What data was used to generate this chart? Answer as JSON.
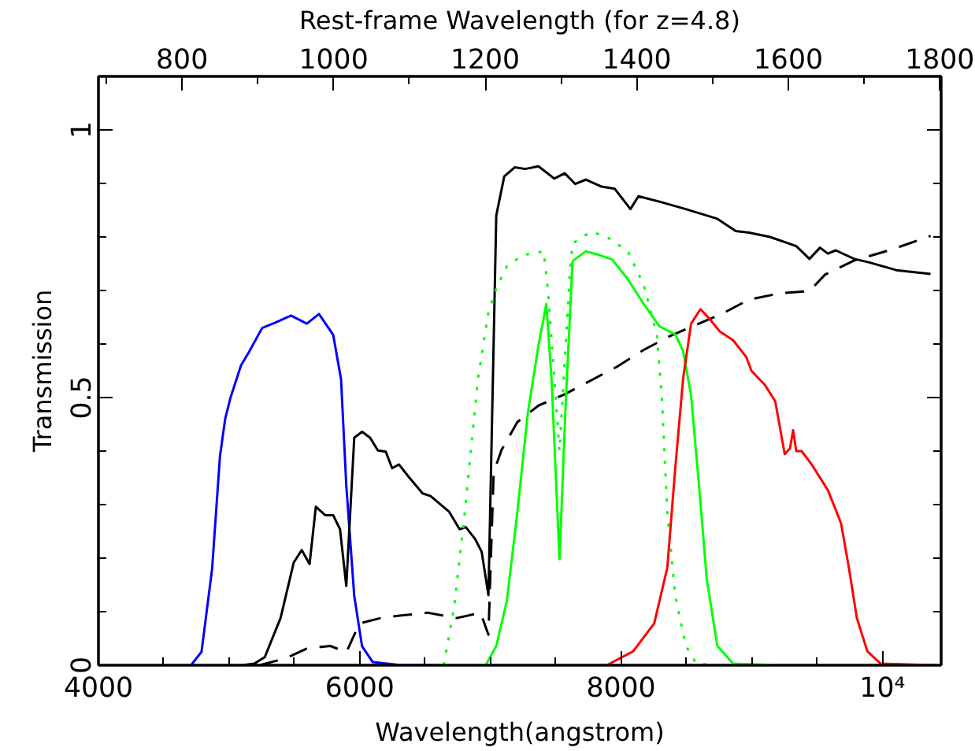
{
  "chart_data": {
    "type": "line",
    "xlabel": "Wavelength(angstrom)",
    "ylabel": "Transmission",
    "x2label": "Rest-frame Wavelength (for z=4.8)",
    "xlim": [
      4000,
      10450
    ],
    "ylim": [
      0,
      1.1
    ],
    "x2lim": [
      689.66,
      1801.72
    ],
    "xticks": [
      4000,
      {
        "value": 4500,
        "label": null
      },
      6000,
      {
        "value": 5000,
        "label": null
      },
      {
        "value": 5500,
        "label": null
      },
      {
        "value": 6500,
        "label": null
      },
      {
        "value": 7000,
        "label": null
      },
      {
        "value": 7500,
        "label": null
      },
      8000,
      {
        "value": 8500,
        "label": null
      },
      {
        "value": 9000,
        "label": null
      },
      {
        "value": 9500,
        "label": null
      },
      {
        "value": 10000,
        "label": "10⁴"
      }
    ],
    "x2ticks": [
      {
        "value": 700,
        "label": null
      },
      800,
      {
        "value": 900,
        "label": null
      },
      1000,
      {
        "value": 1100,
        "label": null
      },
      1200,
      {
        "value": 1300,
        "label": null
      },
      1400,
      {
        "value": 1500,
        "label": null
      },
      1600,
      {
        "value": 1700,
        "label": null
      },
      1800
    ],
    "yticks": [
      0,
      {
        "value": 0.1,
        "label": null
      },
      {
        "value": 0.2,
        "label": null
      },
      {
        "value": 0.3,
        "label": null
      },
      {
        "value": 0.4,
        "label": null
      },
      0.5,
      {
        "value": 0.6,
        "label": null
      },
      {
        "value": 0.7,
        "label": null
      },
      {
        "value": 0.8,
        "label": null
      },
      {
        "value": 0.9,
        "label": null
      },
      1,
      {
        "value": 1.1,
        "label": null
      }
    ],
    "grid": false,
    "series": [
      {
        "color": "#0000ff",
        "line_style": "solid",
        "x": [
          4709,
          4789,
          4870,
          4930,
          4970,
          5011,
          5091,
          5152,
          5253,
          5353,
          5474,
          5595,
          5688,
          5797,
          5857,
          5897,
          5958,
          6018,
          6099,
          6320,
          6562
        ],
        "values": [
          0,
          0.025,
          0.18,
          0.39,
          0.46,
          0.5,
          0.56,
          0.585,
          0.63,
          0.64,
          0.653,
          0.638,
          0.656,
          0.617,
          0.534,
          0.336,
          0.129,
          0.035,
          0.006,
          0,
          0
        ]
      },
      {
        "color": "#000000",
        "line_style": "solid",
        "x": [
          5100,
          5193,
          5273,
          5394,
          5495,
          5556,
          5616,
          5664,
          5737,
          5797,
          5849,
          5897,
          5958,
          6018,
          6079,
          6139,
          6199,
          6248,
          6300,
          6381,
          6481,
          6542,
          6683,
          6764,
          6812,
          6885,
          6933,
          6985,
          7045,
          7106,
          7186,
          7267,
          7368,
          7489,
          7569,
          7650,
          7730,
          7851,
          7952,
          8072,
          8133,
          8294,
          8495,
          8737,
          8878,
          8979,
          9140,
          9341,
          9442,
          9523,
          9583,
          9643,
          9785,
          9906,
          10107,
          10369
        ],
        "values": [
          0,
          0.003,
          0.015,
          0.088,
          0.192,
          0.215,
          0.189,
          0.296,
          0.28,
          0.28,
          0.254,
          0.148,
          0.425,
          0.436,
          0.425,
          0.401,
          0.399,
          0.368,
          0.375,
          0.35,
          0.321,
          0.316,
          0.287,
          0.254,
          0.258,
          0.235,
          0.212,
          0.131,
          0.84,
          0.913,
          0.93,
          0.927,
          0.932,
          0.909,
          0.919,
          0.899,
          0.907,
          0.894,
          0.89,
          0.852,
          0.876,
          0.866,
          0.852,
          0.834,
          0.811,
          0.808,
          0.8,
          0.783,
          0.759,
          0.78,
          0.769,
          0.775,
          0.759,
          0.752,
          0.738,
          0.731
        ]
      },
      {
        "color": "#000000",
        "line_style": "dashed",
        "x": [
          5233,
          5434,
          5595,
          5776,
          5897,
          5998,
          6160,
          6320,
          6522,
          6743,
          6925,
          6985,
          7025,
          7085,
          7206,
          7368,
          7569,
          7770,
          7972,
          8173,
          8375,
          8576,
          8777,
          8979,
          9221,
          9442,
          9563,
          9785,
          10066,
          10369
        ],
        "values": [
          0,
          0.013,
          0.031,
          0.036,
          0.024,
          0.078,
          0.088,
          0.093,
          0.098,
          0.088,
          0.098,
          0.057,
          0.36,
          0.402,
          0.454,
          0.485,
          0.506,
          0.532,
          0.558,
          0.589,
          0.615,
          0.636,
          0.657,
          0.683,
          0.695,
          0.699,
          0.73,
          0.756,
          0.776,
          0.802
        ]
      },
      {
        "color": "#00ff00",
        "line_style": "dotted",
        "x": [
          6643,
          6723,
          6804,
          6904,
          6985,
          7045,
          7126,
          7247,
          7408,
          7441,
          7529,
          7610,
          7629,
          7770,
          7891,
          8052,
          8173,
          8274,
          8314,
          8354,
          8415,
          8495,
          8576,
          8785
        ],
        "values": [
          0,
          0.109,
          0.285,
          0.534,
          0.659,
          0.704,
          0.745,
          0.766,
          0.773,
          0.7,
          0.4,
          0.74,
          0.788,
          0.81,
          0.8,
          0.773,
          0.711,
          0.618,
          0.493,
          0.286,
          0.13,
          0.037,
          0.003,
          0
        ]
      },
      {
        "color": "#00ff00",
        "line_style": "solid",
        "x": [
          6924,
          6964,
          7045,
          7126,
          7206,
          7287,
          7368,
          7428,
          7468,
          7529,
          7577,
          7629,
          7730,
          7811,
          7932,
          8052,
          8173,
          8294,
          8415,
          8475,
          8536,
          8596,
          8656,
          8737,
          8858,
          9200
        ],
        "values": [
          0,
          0,
          0.036,
          0.12,
          0.285,
          0.472,
          0.597,
          0.675,
          0.535,
          0.198,
          0.493,
          0.755,
          0.773,
          0.768,
          0.758,
          0.721,
          0.675,
          0.633,
          0.618,
          0.587,
          0.504,
          0.338,
          0.161,
          0.036,
          0.003,
          0
        ]
      },
      {
        "color": "#ff0000",
        "line_style": "solid",
        "x": [
          7891,
          8093,
          8254,
          8354,
          8415,
          8475,
          8536,
          8608,
          8677,
          8757,
          8858,
          8958,
          8998,
          9100,
          9180,
          9253,
          9293,
          9317,
          9341,
          9382,
          9462,
          9583,
          9684,
          9744,
          9805,
          9885,
          9986,
          10400
        ],
        "values": [
          0,
          0.026,
          0.078,
          0.182,
          0.368,
          0.535,
          0.638,
          0.665,
          0.647,
          0.623,
          0.607,
          0.576,
          0.55,
          0.524,
          0.493,
          0.394,
          0.405,
          0.439,
          0.4,
          0.4,
          0.374,
          0.327,
          0.265,
          0.182,
          0.088,
          0.026,
          0.003,
          0
        ]
      }
    ]
  }
}
